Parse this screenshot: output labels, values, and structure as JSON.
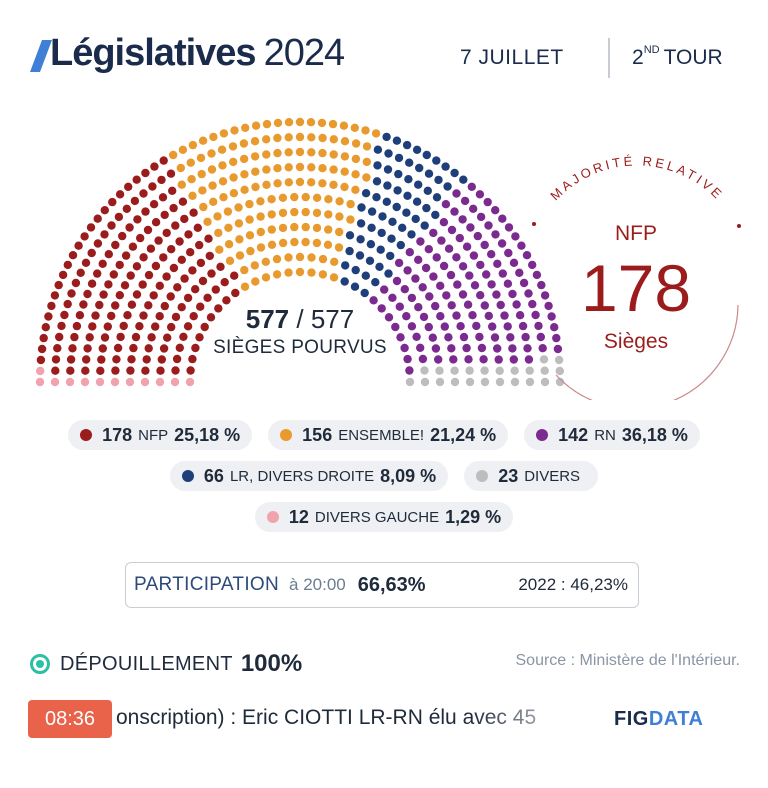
{
  "header": {
    "logo_text": "Législatives",
    "year": "2024",
    "date": "7 JUILLET",
    "tour_num": "2",
    "tour_sup": "ND",
    "tour_label": "TOUR"
  },
  "hemicycle": {
    "seats_filled": "577",
    "seats_total": "577",
    "label": "SIÈGES POURVUS"
  },
  "majority": {
    "arc_label": "MAJORITÉ RELATIVE",
    "party": "NFP",
    "seats": "178",
    "unit": "Sièges"
  },
  "chart_data": {
    "type": "hemicycle",
    "total_seats": 577,
    "series": [
      {
        "name": "DIVERS GAUCHE",
        "seats": 12,
        "percent": 1.29,
        "color": "#f0a3ad"
      },
      {
        "name": "NFP",
        "seats": 178,
        "percent": 25.18,
        "color": "#9b1c1c"
      },
      {
        "name": "ENSEMBLE!",
        "seats": 156,
        "percent": 21.24,
        "color": "#e89a2e"
      },
      {
        "name": "LR, DIVERS DROITE",
        "seats": 66,
        "percent": 8.09,
        "color": "#1f3f7a"
      },
      {
        "name": "RN",
        "seats": 142,
        "percent": 36.18,
        "color": "#7b2a8f"
      },
      {
        "name": "DIVERS",
        "seats": 23,
        "percent": null,
        "color": "#bdbdbd"
      }
    ]
  },
  "legend": [
    {
      "seats": "178",
      "name": "NFP",
      "pct": "25,18 %",
      "color": "#9b1c1c"
    },
    {
      "seats": "156",
      "name": "ENSEMBLE!",
      "pct": "21,24 %",
      "color": "#e89a2e"
    },
    {
      "seats": "142",
      "name": "RN",
      "pct": "36,18 %",
      "color": "#7b2a8f"
    },
    {
      "seats": "66",
      "name": "LR, DIVERS DROITE",
      "pct": "8,09 %",
      "color": "#1f3f7a"
    },
    {
      "seats": "23",
      "name": "DIVERS",
      "pct": "",
      "color": "#bdbdbd"
    },
    {
      "seats": "12",
      "name": "DIVERS GAUCHE",
      "pct": "1,29 %",
      "color": "#f0a3ad"
    }
  ],
  "participation": {
    "label": "PARTICIPATION",
    "time": "à 20:00",
    "value": "66,63%",
    "previous": "2022 : 46,23%"
  },
  "depouillement": {
    "label": "DÉPOUILLEMENT",
    "value": "100%",
    "icon": "record-icon"
  },
  "source": "Source : Ministère de l'Intérieur.",
  "ticker": {
    "time": "08:36",
    "text": "onscription) : Eric CIOTTI LR-RN élu avec 45",
    "brand_a": "FIG",
    "brand_b": "DATA"
  }
}
